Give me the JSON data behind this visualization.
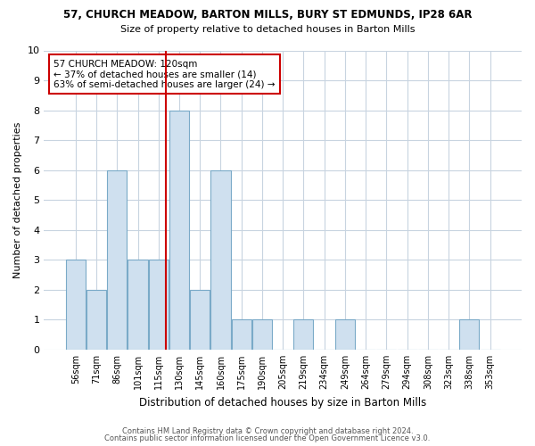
{
  "title1": "57, CHURCH MEADOW, BARTON MILLS, BURY ST EDMUNDS, IP28 6AR",
  "title2": "Size of property relative to detached houses in Barton Mills",
  "xlabel": "Distribution of detached houses by size in Barton Mills",
  "ylabel": "Number of detached properties",
  "bar_labels": [
    "56sqm",
    "71sqm",
    "86sqm",
    "101sqm",
    "115sqm",
    "130sqm",
    "145sqm",
    "160sqm",
    "175sqm",
    "190sqm",
    "205sqm",
    "219sqm",
    "234sqm",
    "249sqm",
    "264sqm",
    "279sqm",
    "294sqm",
    "308sqm",
    "323sqm",
    "338sqm",
    "353sqm"
  ],
  "bar_values": [
    3,
    2,
    6,
    3,
    3,
    8,
    2,
    6,
    1,
    1,
    0,
    1,
    0,
    1,
    0,
    0,
    0,
    0,
    0,
    1,
    0
  ],
  "bar_color": "#cfe0ef",
  "bar_edgecolor": "#7aaac8",
  "ylim": [
    0,
    10
  ],
  "yticks": [
    0,
    1,
    2,
    3,
    4,
    5,
    6,
    7,
    8,
    9,
    10
  ],
  "property_line_color": "#cc0000",
  "annotation_text": "57 CHURCH MEADOW: 120sqm\n← 37% of detached houses are smaller (14)\n63% of semi-detached houses are larger (24) →",
  "annotation_box_edgecolor": "#cc0000",
  "footer1": "Contains HM Land Registry data © Crown copyright and database right 2024.",
  "footer2": "Contains public sector information licensed under the Open Government Licence v3.0.",
  "bg_color": "#ffffff",
  "plot_bg_color": "#ffffff",
  "grid_color": "#c8d4e0"
}
